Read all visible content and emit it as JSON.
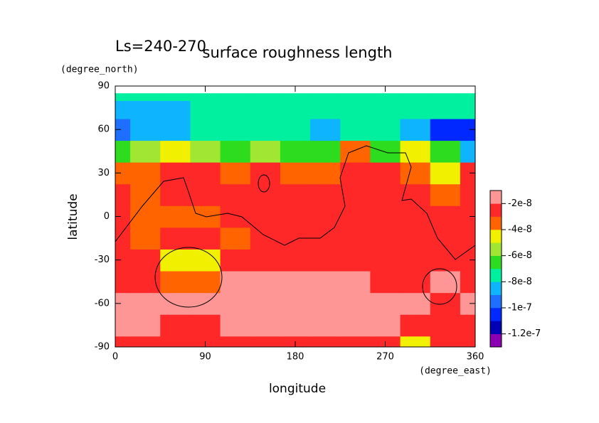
{
  "chart_data": {
    "type": "contour",
    "title": "surface roughness length",
    "subtitle": "Ls=240-270",
    "x_label": "longitude",
    "x_units": "(degree_east)",
    "y_label": "latitude",
    "y_units": "(degree_north)",
    "xlim": [
      0,
      360
    ],
    "xticks": [
      0,
      90,
      180,
      270,
      360
    ],
    "ylim": [
      -90,
      90
    ],
    "yticks": [
      -90,
      -60,
      -30,
      0,
      30,
      60,
      90
    ],
    "x": [
      0,
      30,
      60,
      90,
      120,
      150,
      180,
      210,
      240,
      270,
      300,
      330,
      360
    ],
    "y": [
      -90,
      -75,
      -60,
      -45,
      -30,
      -15,
      0,
      15,
      30,
      45,
      60,
      75,
      85
    ],
    "z": [
      [
        -2.5e-08,
        -2.5e-08,
        -2.5e-08,
        -2.5e-08,
        -2.5e-08,
        -2.5e-08,
        -2.5e-08,
        -2.5e-08,
        -2.5e-08,
        -2.5e-08,
        -4.5e-08,
        -2.5e-08,
        -2.5e-08
      ],
      [
        -1.5e-08,
        -1.5e-08,
        -2.5e-08,
        -2.5e-08,
        -1.5e-08,
        -1.5e-08,
        -1.5e-08,
        -1.5e-08,
        -1.5e-08,
        -1.5e-08,
        -2.5e-08,
        -2.5e-08,
        -2.5e-08
      ],
      [
        -1.5e-08,
        -1.5e-08,
        -1.5e-08,
        -1.5e-08,
        -1.5e-08,
        -1.5e-08,
        -1.5e-08,
        -1.5e-08,
        -1.5e-08,
        -1.5e-08,
        -1.5e-08,
        -2.5e-08,
        -1.5e-08
      ],
      [
        -2.5e-08,
        -2.5e-08,
        -3.5e-08,
        -3.5e-08,
        -1.5e-08,
        -1.5e-08,
        -1.5e-08,
        -1.5e-08,
        -1.5e-08,
        -2.5e-08,
        -2.5e-08,
        -1.5e-08,
        -2.5e-08
      ],
      [
        -2.5e-08,
        -2.5e-08,
        -4.5e-08,
        -4.5e-08,
        -2.5e-08,
        -2.5e-08,
        -2.5e-08,
        -2.5e-08,
        -2.5e-08,
        -2.5e-08,
        -2.5e-08,
        -2.5e-08,
        -2.5e-08
      ],
      [
        -2.5e-08,
        -3.5e-08,
        -2.5e-08,
        -2.5e-08,
        -3.5e-08,
        -2.5e-08,
        -2.5e-08,
        -2.5e-08,
        -2.5e-08,
        -2.5e-08,
        -2.5e-08,
        -2.5e-08,
        -2.5e-08
      ],
      [
        -2.5e-08,
        -3.5e-08,
        -3.5e-08,
        -3.5e-08,
        -2.5e-08,
        -2.5e-08,
        -2.5e-08,
        -2.5e-08,
        -2.5e-08,
        -2.5e-08,
        -2.5e-08,
        -2.5e-08,
        -2.5e-08
      ],
      [
        -2.5e-08,
        -3.5e-08,
        -2.5e-08,
        -2.5e-08,
        -2.5e-08,
        -2.5e-08,
        -2.5e-08,
        -2.5e-08,
        -2.5e-08,
        -2.5e-08,
        -2.5e-08,
        -3.5e-08,
        -2.5e-08
      ],
      [
        -3.5e-08,
        -3.5e-08,
        -2.5e-08,
        -2.5e-08,
        -3.5e-08,
        -2.5e-08,
        -3.5e-08,
        -3.5e-08,
        -2.5e-08,
        -2.5e-08,
        -3.5e-08,
        -4.5e-08,
        -2.5e-08
      ],
      [
        -6.5e-08,
        -5.5e-08,
        -4.5e-08,
        -5.5e-08,
        -6.5e-08,
        -5.5e-08,
        -6.5e-08,
        -6.5e-08,
        -3.5e-08,
        -6.5e-08,
        -4.5e-08,
        -6.5e-08,
        -8.5e-08
      ],
      [
        -9.5e-08,
        -8.5e-08,
        -8.5e-08,
        -7.5e-08,
        -7.5e-08,
        -7.5e-08,
        -7.5e-08,
        -8.5e-08,
        -7.5e-08,
        -7.5e-08,
        -8.5e-08,
        -1.05e-07,
        -1.05e-07
      ],
      [
        -8.5e-08,
        -8.5e-08,
        -8.5e-08,
        -7.5e-08,
        -7.5e-08,
        -7.5e-08,
        -7.5e-08,
        -7.5e-08,
        -7.5e-08,
        -7.5e-08,
        -7.5e-08,
        -7.5e-08,
        -7.5e-08
      ],
      [
        -7.5e-08,
        -7.5e-08,
        -7.5e-08,
        -7.5e-08,
        -7.5e-08,
        -7.5e-08,
        -7.5e-08,
        -7.5e-08,
        -7.5e-08,
        -7.5e-08,
        -7.5e-08,
        -7.5e-08,
        -7.5e-08
      ]
    ],
    "levels": [
      -1.2e-07,
      -1.1e-07,
      -1e-07,
      -9e-08,
      -8e-08,
      -7e-08,
      -6e-08,
      -5e-08,
      -4e-08,
      -3e-08,
      -2e-08
    ],
    "colors": [
      "#8c00b4",
      "#0000b4",
      "#0028ff",
      "#1e6eff",
      "#0fb4ff",
      "#00f0a0",
      "#2ddc1e",
      "#a0e632",
      "#f0f000",
      "#ff6400",
      "#ff2828",
      "#ff9696"
    ],
    "colorbar_ticks": [
      -1.2e-07,
      -1e-07,
      -8e-08,
      -6e-08,
      -4e-08,
      -2e-08
    ]
  }
}
